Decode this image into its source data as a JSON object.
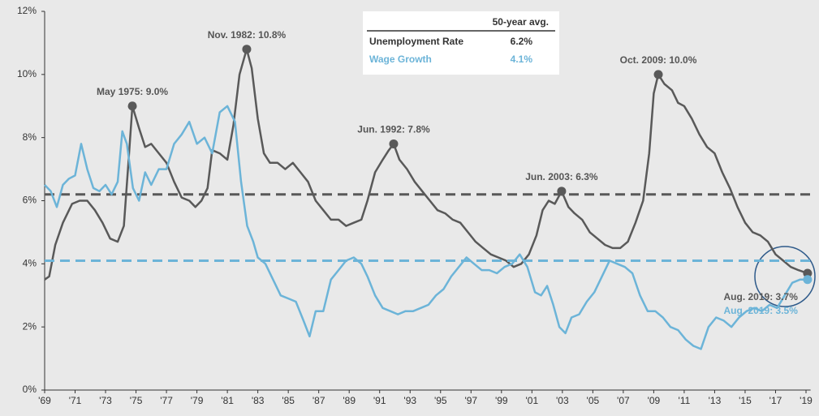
{
  "chart_data": {
    "type": "line",
    "xlim": [
      1969,
      2019.3
    ],
    "ylim": [
      0,
      12
    ],
    "yticks": [
      {
        "value": 0,
        "label": "0%"
      },
      {
        "value": 2,
        "label": "2%"
      },
      {
        "value": 4,
        "label": "4%"
      },
      {
        "value": 6,
        "label": "6%"
      },
      {
        "value": 8,
        "label": "8%"
      },
      {
        "value": 10,
        "label": "10%"
      },
      {
        "value": 12,
        "label": "12%"
      }
    ],
    "xticks": [
      {
        "value": 1969,
        "label": "'69"
      },
      {
        "value": 1971,
        "label": "'71"
      },
      {
        "value": 1973,
        "label": "'73"
      },
      {
        "value": 1975,
        "label": "'75"
      },
      {
        "value": 1977,
        "label": "'77"
      },
      {
        "value": 1979,
        "label": "'79"
      },
      {
        "value": 1981,
        "label": "'81"
      },
      {
        "value": 1983,
        "label": "'83"
      },
      {
        "value": 1985,
        "label": "'85"
      },
      {
        "value": 1987,
        "label": "'87"
      },
      {
        "value": 1989,
        "label": "'89"
      },
      {
        "value": 1991,
        "label": "'91"
      },
      {
        "value": 1993,
        "label": "'93"
      },
      {
        "value": 1995,
        "label": "'95"
      },
      {
        "value": 1997,
        "label": "'97"
      },
      {
        "value": 1999,
        "label": "'99"
      },
      {
        "value": 2001,
        "label": "'01"
      },
      {
        "value": 2003,
        "label": "'03"
      },
      {
        "value": 2005,
        "label": "'05"
      },
      {
        "value": 2007,
        "label": "'07"
      },
      {
        "value": 2009,
        "label": "'09"
      },
      {
        "value": 2011,
        "label": "'11"
      },
      {
        "value": 2013,
        "label": "'13"
      },
      {
        "value": 2015,
        "label": "'15"
      },
      {
        "value": 2017,
        "label": "'17"
      },
      {
        "value": 2019,
        "label": "'19"
      }
    ],
    "legend_header": "50-year avg.",
    "series": [
      {
        "name": "Unemployment Rate",
        "color": "#595959",
        "avg": 6.2,
        "avg_label": "6.2%",
        "x": [
          1969,
          1969.3,
          1969.7,
          1970.2,
          1970.8,
          1971.3,
          1971.8,
          1972.3,
          1972.8,
          1973.3,
          1973.8,
          1974.2,
          1974.5,
          1974.76,
          1975.2,
          1975.6,
          1976.0,
          1976.5,
          1977.0,
          1977.5,
          1978.0,
          1978.5,
          1978.9,
          1979.3,
          1979.7,
          1980.0,
          1980.5,
          1981.0,
          1981.4,
          1981.8,
          1982.27,
          1982.6,
          1983.0,
          1983.4,
          1983.8,
          1984.3,
          1984.8,
          1985.3,
          1985.8,
          1986.3,
          1986.8,
          1987.3,
          1987.8,
          1988.3,
          1988.8,
          1989.3,
          1989.8,
          1990.2,
          1990.7,
          1991.2,
          1991.6,
          1991.92,
          1992.3,
          1992.8,
          1993.3,
          1993.8,
          1994.3,
          1994.8,
          1995.3,
          1995.8,
          1996.3,
          1996.8,
          1997.3,
          1997.8,
          1998.3,
          1998.8,
          1999.3,
          1999.8,
          2000.3,
          2000.8,
          2001.3,
          2001.7,
          2002.1,
          2002.5,
          2002.95,
          2003.4,
          2003.8,
          2004.3,
          2004.8,
          2005.3,
          2005.8,
          2006.3,
          2006.8,
          2007.3,
          2007.8,
          2008.3,
          2008.7,
          2009.0,
          2009.3,
          2009.7,
          2010.2,
          2010.6,
          2011.0,
          2011.5,
          2012.0,
          2012.5,
          2013.0,
          2013.5,
          2014.0,
          2014.5,
          2015.0,
          2015.5,
          2016.0,
          2016.5,
          2017.0,
          2017.5,
          2018.0,
          2018.5,
          2019.1
        ],
        "values": [
          3.5,
          3.6,
          4.6,
          5.3,
          5.9,
          6.0,
          6.0,
          5.7,
          5.3,
          4.8,
          4.7,
          5.2,
          7.2,
          9.0,
          8.3,
          7.7,
          7.8,
          7.5,
          7.2,
          6.6,
          6.1,
          6.0,
          5.8,
          6.0,
          6.4,
          7.6,
          7.5,
          7.3,
          8.4,
          10.0,
          10.8,
          10.2,
          8.6,
          7.5,
          7.2,
          7.2,
          7.0,
          7.2,
          6.9,
          6.6,
          6.0,
          5.7,
          5.4,
          5.4,
          5.2,
          5.3,
          5.4,
          6.0,
          6.9,
          7.3,
          7.6,
          7.8,
          7.3,
          7.0,
          6.6,
          6.3,
          6.0,
          5.7,
          5.6,
          5.4,
          5.3,
          5.0,
          4.7,
          4.5,
          4.3,
          4.2,
          4.1,
          3.9,
          4.0,
          4.3,
          4.9,
          5.7,
          6.0,
          5.9,
          6.3,
          5.8,
          5.6,
          5.4,
          5.0,
          4.8,
          4.6,
          4.5,
          4.5,
          4.7,
          5.3,
          6.0,
          7.5,
          9.4,
          10.0,
          9.7,
          9.5,
          9.1,
          9.0,
          8.6,
          8.1,
          7.7,
          7.5,
          6.9,
          6.4,
          5.8,
          5.3,
          5.0,
          4.9,
          4.7,
          4.3,
          4.1,
          3.9,
          3.8,
          3.7
        ]
      },
      {
        "name": "Wage Growth",
        "color": "#6cb4d8",
        "avg": 4.1,
        "avg_label": "4.1%",
        "x": [
          1969,
          1969.4,
          1969.8,
          1970.2,
          1970.6,
          1971.0,
          1971.4,
          1971.8,
          1972.2,
          1972.6,
          1973.0,
          1973.4,
          1973.8,
          1974.1,
          1974.4,
          1974.8,
          1975.2,
          1975.6,
          1976.0,
          1976.5,
          1977.0,
          1977.5,
          1978.0,
          1978.5,
          1979.0,
          1979.5,
          1980.0,
          1980.5,
          1981.0,
          1981.5,
          1981.9,
          1982.3,
          1982.7,
          1983.0,
          1983.5,
          1984.0,
          1984.5,
          1985.0,
          1985.5,
          1986.0,
          1986.4,
          1986.8,
          1987.3,
          1987.8,
          1988.3,
          1988.8,
          1989.3,
          1989.8,
          1990.2,
          1990.7,
          1991.2,
          1991.7,
          1992.2,
          1992.7,
          1993.2,
          1993.7,
          1994.2,
          1994.7,
          1995.2,
          1995.7,
          1996.2,
          1996.7,
          1997.2,
          1997.7,
          1998.2,
          1998.7,
          1999.2,
          1999.7,
          2000.2,
          2000.7,
          2001.2,
          2001.6,
          2002.0,
          2002.4,
          2002.8,
          2003.2,
          2003.6,
          2004.1,
          2004.6,
          2005.1,
          2005.6,
          2006.1,
          2006.6,
          2007.1,
          2007.6,
          2008.1,
          2008.6,
          2009.1,
          2009.6,
          2010.1,
          2010.6,
          2011.1,
          2011.6,
          2012.1,
          2012.6,
          2013.1,
          2013.6,
          2014.1,
          2014.6,
          2015.1,
          2015.6,
          2016.1,
          2016.6,
          2017.1,
          2017.6,
          2018.1,
          2018.6,
          2019.1
        ],
        "values": [
          6.5,
          6.3,
          5.8,
          6.5,
          6.7,
          6.8,
          7.8,
          7.0,
          6.4,
          6.3,
          6.5,
          6.2,
          6.6,
          8.2,
          7.8,
          6.4,
          6.0,
          6.9,
          6.5,
          7.0,
          7.0,
          7.8,
          8.1,
          8.5,
          7.8,
          8.0,
          7.5,
          8.8,
          9.0,
          8.5,
          6.6,
          5.2,
          4.7,
          4.2,
          4.0,
          3.5,
          3.0,
          2.9,
          2.8,
          2.2,
          1.7,
          2.5,
          2.5,
          3.5,
          3.8,
          4.1,
          4.2,
          4.0,
          3.6,
          3.0,
          2.6,
          2.5,
          2.4,
          2.5,
          2.5,
          2.6,
          2.7,
          3.0,
          3.2,
          3.6,
          3.9,
          4.2,
          4.0,
          3.8,
          3.8,
          3.7,
          3.9,
          4.0,
          4.3,
          3.9,
          3.1,
          3.0,
          3.3,
          2.7,
          2.0,
          1.8,
          2.3,
          2.4,
          2.8,
          3.1,
          3.6,
          4.1,
          4.0,
          3.9,
          3.7,
          3.0,
          2.5,
          2.5,
          2.3,
          2.0,
          1.9,
          1.6,
          1.4,
          1.3,
          2.0,
          2.3,
          2.2,
          2.0,
          2.3,
          2.5,
          2.6,
          2.5,
          2.7,
          2.6,
          3.0,
          3.4,
          3.5,
          3.5
        ]
      }
    ],
    "annotations": [
      {
        "text": "May 1975: 9.0%",
        "x": 1974.76,
        "y": 9.0
      },
      {
        "text": "Nov. 1982: 10.8%",
        "x": 1982.27,
        "y": 10.8
      },
      {
        "text": "Jun. 1992: 7.8%",
        "x": 1991.92,
        "y": 7.8
      },
      {
        "text": "Jun. 2003: 6.3%",
        "x": 2002.95,
        "y": 6.3
      },
      {
        "text": "Oct. 2009: 10.0%",
        "x": 2009.3,
        "y": 10.0
      }
    ],
    "end_labels": [
      {
        "text": "Aug. 2019: 3.7%",
        "x": 2019.1,
        "y": 3.7,
        "color": "#595959"
      },
      {
        "text": "Aug. 2019: 3.5%",
        "x": 2019.1,
        "y": 3.5,
        "color": "#6cb4d8"
      }
    ]
  }
}
